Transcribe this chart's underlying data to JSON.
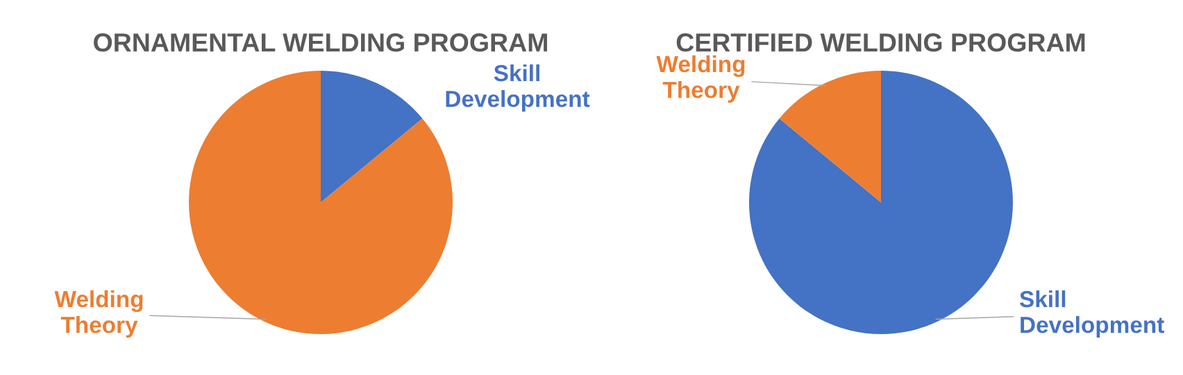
{
  "chart_data": [
    {
      "type": "pie",
      "title": "ORNAMENTAL WELDING PROGRAM",
      "categories": [
        "Skill Development",
        "Welding Theory"
      ],
      "values": [
        14,
        86
      ],
      "colors": [
        "#4472c4",
        "#ed7d31"
      ]
    },
    {
      "type": "pie",
      "title": "CERTIFIED WELDING PROGRAM",
      "categories": [
        "Skill Development",
        "Welding Theory"
      ],
      "values": [
        86,
        14
      ],
      "colors": [
        "#4472c4",
        "#ed7d31"
      ]
    }
  ]
}
